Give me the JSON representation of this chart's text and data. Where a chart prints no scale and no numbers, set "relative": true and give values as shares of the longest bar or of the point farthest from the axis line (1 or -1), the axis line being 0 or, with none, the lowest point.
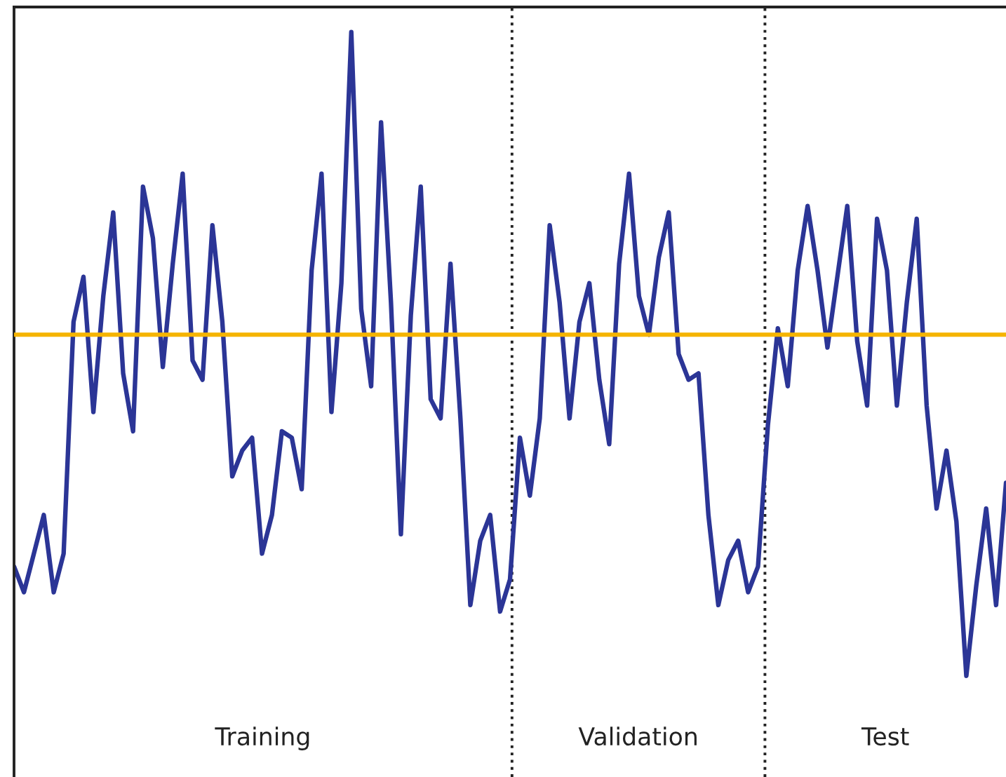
{
  "chart_data": {
    "type": "line",
    "relative": true,
    "marker": "none",
    "line_style": "solid",
    "categories": [
      null,
      null,
      null,
      null,
      null,
      null,
      null,
      null,
      null,
      null,
      null,
      null,
      null,
      null,
      null,
      null,
      null,
      null,
      null,
      null,
      null,
      null,
      null,
      null,
      null,
      null,
      null,
      null,
      null,
      null,
      null,
      null,
      null,
      null,
      null,
      null,
      null,
      null,
      null,
      null,
      null,
      null,
      null,
      null,
      null,
      null,
      null,
      null,
      null,
      null,
      null,
      null,
      null,
      null,
      null,
      null,
      null,
      null,
      null,
      null,
      null,
      null,
      null,
      null,
      null,
      null,
      null,
      null,
      null,
      null,
      null,
      null,
      null,
      null,
      null,
      null,
      null,
      null,
      null,
      null,
      null,
      null,
      null,
      null,
      null,
      null,
      null,
      null,
      null,
      null,
      null,
      null,
      null,
      null,
      null,
      null,
      null,
      null,
      null,
      null,
      null
    ],
    "series": [
      {
        "color": "#2b3596",
        "values": [
          0.17,
          0.13,
          0.19,
          0.25,
          0.13,
          0.19,
          0.55,
          0.62,
          0.41,
          0.59,
          0.72,
          0.47,
          0.38,
          0.76,
          0.68,
          0.48,
          0.64,
          0.78,
          0.49,
          0.46,
          0.7,
          0.55,
          0.31,
          0.35,
          0.37,
          0.19,
          0.25,
          0.38,
          0.37,
          0.29,
          0.63,
          0.78,
          0.41,
          0.61,
          1.0,
          0.57,
          0.45,
          0.86,
          0.58,
          0.22,
          0.56,
          0.76,
          0.43,
          0.4,
          0.64,
          0.4,
          0.11,
          0.21,
          0.25,
          0.1,
          0.15,
          0.37,
          0.28,
          0.4,
          0.7,
          0.58,
          0.4,
          0.55,
          0.61,
          0.46,
          0.36,
          0.64,
          0.78,
          0.59,
          0.53,
          0.65,
          0.72,
          0.5,
          0.46,
          0.47,
          0.25,
          0.11,
          0.18,
          0.21,
          0.13,
          0.17,
          0.39,
          0.54,
          0.45,
          0.63,
          0.73,
          0.63,
          0.51,
          0.62,
          0.73,
          0.52,
          0.42,
          0.71,
          0.63,
          0.42,
          0.58,
          0.71,
          0.42,
          0.26,
          0.35,
          0.24,
          0.0,
          0.14,
          0.26,
          0.11,
          0.3
        ]
      }
    ],
    "ref_lines": [
      {
        "axis": "y",
        "value": 0.53,
        "color": "#f5b400",
        "line_style": "solid"
      }
    ],
    "annotations": [
      "Training",
      "Validation",
      "Test"
    ]
  }
}
